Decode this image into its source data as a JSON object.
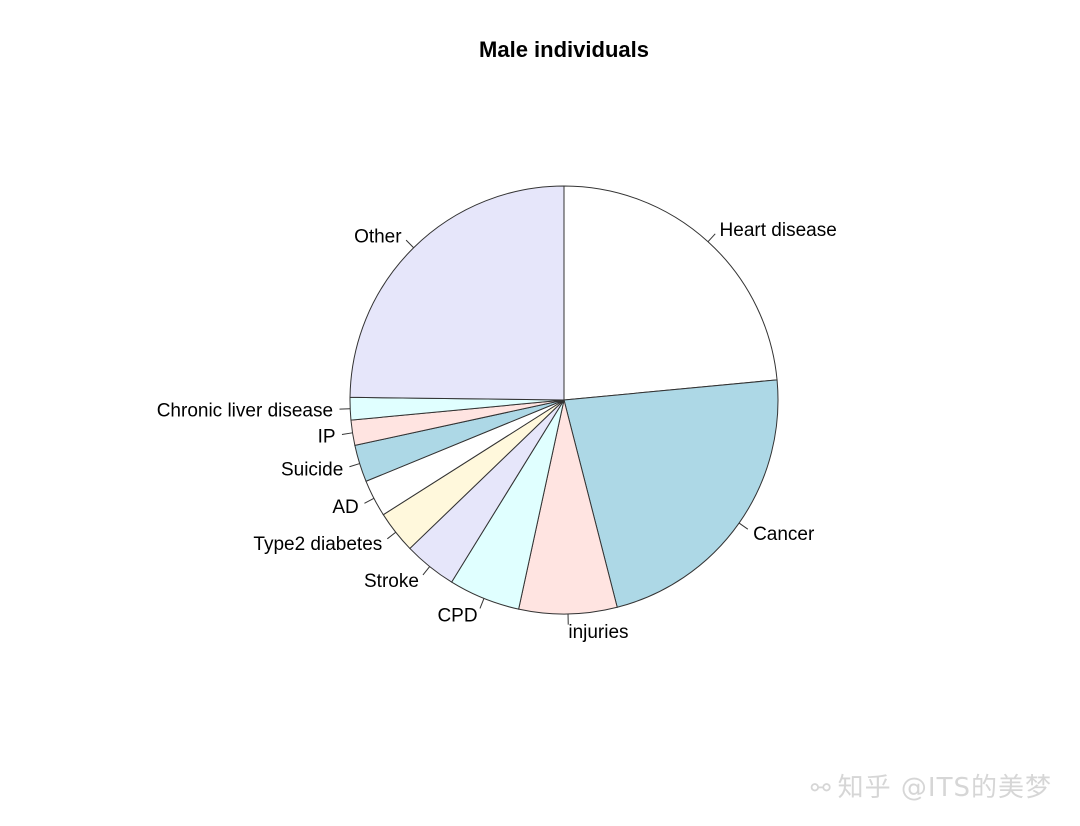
{
  "chart_data": {
    "type": "pie",
    "title": "Male individuals",
    "start": "12 o'clock",
    "direction": "clockwise",
    "border_color": "#333333",
    "slices": [
      {
        "label": "Heart disease",
        "value": 23.5,
        "color": "#FFFFFF"
      },
      {
        "label": "Cancer",
        "value": 22.5,
        "color": "#ADD8E6"
      },
      {
        "label": "injuries",
        "value": 7.4,
        "color": "#FFE4E1"
      },
      {
        "label": "CPD",
        "value": 5.4,
        "color": "#E0FFFF"
      },
      {
        "label": "Stroke",
        "value": 4.0,
        "color": "#E6E6FA"
      },
      {
        "label": "Type2 diabetes",
        "value": 3.2,
        "color": "#FFF8DC"
      },
      {
        "label": "AD",
        "value": 2.8,
        "color": "#FFFFFF"
      },
      {
        "label": "Suicide",
        "value": 2.8,
        "color": "#ADD8E6"
      },
      {
        "label": "IP",
        "value": 1.9,
        "color": "#FFE4E1"
      },
      {
        "label": "Chronic liver disease",
        "value": 1.7,
        "color": "#E0FFFF"
      },
      {
        "label": "Other",
        "value": 24.8,
        "color": "#E6E6FA"
      }
    ]
  },
  "watermark": {
    "icon": "wechat-icon",
    "text": "知乎 @ITS的美梦"
  }
}
